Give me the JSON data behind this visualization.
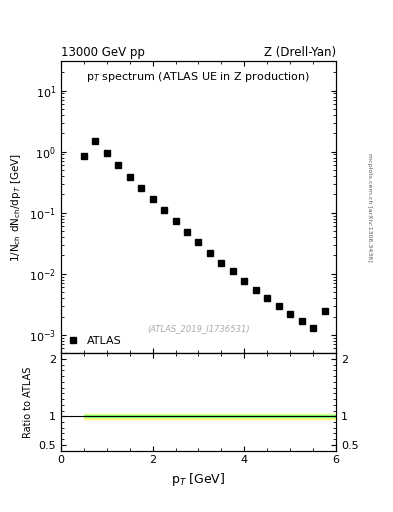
{
  "title_left": "13000 GeV pp",
  "title_right": "Z (Drell-Yan)",
  "plot_title": "p$_T$ spectrum (ATLAS UE in Z production)",
  "xlabel": "p$_T$ [GeV]",
  "ylabel": "1/N$_{\\rm ch}$ dN$_{\\rm ch}$/dp$_T$ [GeV]",
  "ylabel_ratio": "Ratio to ATLAS",
  "watermark": "(ATLAS_2019_I1736531)",
  "side_text": "mcplots.cern.ch [arXiv:1306.3436]",
  "legend_label": "ATLAS",
  "xlim": [
    0,
    6.0
  ],
  "ylim_main_log": [
    -3.3,
    1.5
  ],
  "ylim_main": [
    0.0005,
    30
  ],
  "ylim_ratio": [
    0.4,
    2.1
  ],
  "pt_values": [
    0.5,
    0.75,
    1.0,
    1.25,
    1.5,
    1.75,
    2.0,
    2.25,
    2.5,
    2.75,
    3.0,
    3.25,
    3.5,
    3.75,
    4.0,
    4.25,
    4.5,
    4.75,
    5.0,
    5.25,
    5.5,
    5.75
  ],
  "spectrum_values": [
    0.85,
    1.5,
    0.95,
    0.6,
    0.38,
    0.25,
    0.165,
    0.11,
    0.073,
    0.048,
    0.033,
    0.022,
    0.015,
    0.011,
    0.0075,
    0.0055,
    0.004,
    0.003,
    0.0022,
    0.0017,
    0.0013,
    0.00245
  ],
  "ratio_x_start": 0.5,
  "ratio_x_end": 6.0,
  "ratio_green_lo": 0.982,
  "ratio_green_hi": 1.018,
  "ratio_yellow_lo": 0.96,
  "ratio_yellow_hi": 1.04,
  "marker_color": "black",
  "marker_style": "s",
  "marker_size": 4,
  "band_green_color": "#80ff80",
  "band_yellow_color": "#ffff80",
  "background_color": "white"
}
